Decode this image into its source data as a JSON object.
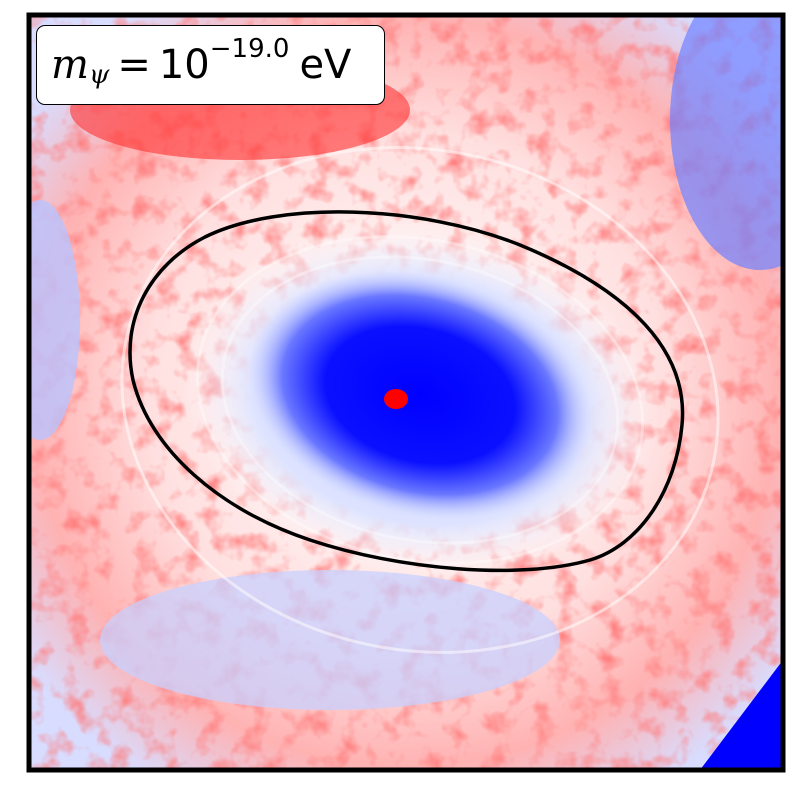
{
  "chart_data": {
    "type": "heatmap",
    "colormap": "bwr",
    "colors": {
      "positive": "#ff0000",
      "neutral": "#ffffff",
      "negative": "#0000ff",
      "contour": "#000000"
    },
    "contour": {
      "shape": "ellipse"
    },
    "axes": {
      "ticks": "none",
      "grid": false
    },
    "legend": {
      "placement": "top-left"
    },
    "annotation": {
      "symbol": "m",
      "subscript": "ψ",
      "equals": "=",
      "base": "10",
      "exponent": "−19.0",
      "unit": "eV"
    }
  }
}
